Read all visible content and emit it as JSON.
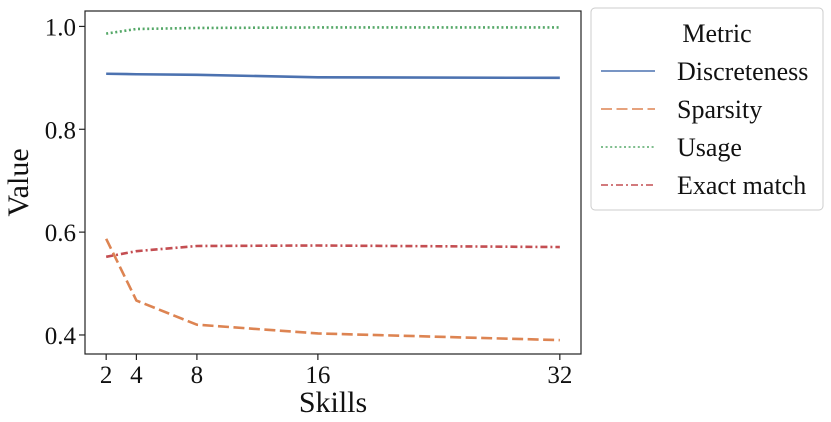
{
  "chart_data": {
    "type": "line",
    "title": "",
    "xlabel": "Skills",
    "ylabel": "Value",
    "x": [
      2,
      4,
      8,
      16,
      32
    ],
    "xticks": [
      "2",
      "4",
      "8",
      "16",
      "32"
    ],
    "yticks": [
      "0.4",
      "0.6",
      "0.8",
      "1.0"
    ],
    "xlim": [
      0.6,
      33.4
    ],
    "ylim": [
      0.363,
      1.03
    ],
    "grid": false,
    "legend": {
      "title": "Metric",
      "placement": "outside-top-right"
    },
    "series": [
      {
        "name": "Discreteness",
        "color": "#4c72b0",
        "dash": "solid",
        "values": [
          0.908,
          0.907,
          0.906,
          0.901,
          0.9
        ]
      },
      {
        "name": "Sparsity",
        "color": "#dd8452",
        "dash": "dashed",
        "values": [
          0.587,
          0.467,
          0.42,
          0.403,
          0.39
        ]
      },
      {
        "name": "Usage",
        "color": "#55a868",
        "dash": "dotted",
        "values": [
          0.986,
          0.995,
          0.997,
          0.998,
          0.998
        ]
      },
      {
        "name": "Exact match",
        "color": "#c44e52",
        "dash": "dashdot",
        "values": [
          0.552,
          0.563,
          0.573,
          0.574,
          0.571
        ]
      }
    ]
  }
}
